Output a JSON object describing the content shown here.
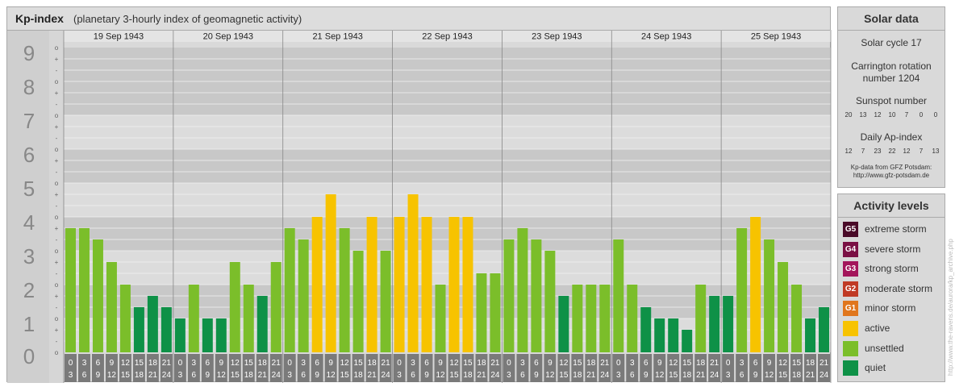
{
  "chart_data": {
    "type": "bar",
    "title": "Kp-index",
    "subtitle": "(planetary 3-hourly index of geomagnetic activity)",
    "ylim": [
      0,
      9
    ],
    "y_ticks": [
      "0",
      "1",
      "2",
      "3",
      "4",
      "5",
      "6",
      "7",
      "8",
      "9"
    ],
    "sub_ticks": [
      "+",
      "o",
      "-"
    ],
    "days": [
      "19 Sep 1943",
      "20 Sep 1943",
      "21 Sep 1943",
      "22 Sep 1943",
      "23 Sep 1943",
      "24 Sep 1943",
      "25 Sep 1943"
    ],
    "intervals": [
      [
        "0",
        "3"
      ],
      [
        "3",
        "6"
      ],
      [
        "6",
        "9"
      ],
      [
        "9",
        "12"
      ],
      [
        "12",
        "15"
      ],
      [
        "15",
        "18"
      ],
      [
        "18",
        "21"
      ],
      [
        "21",
        "24"
      ]
    ],
    "values": [
      [
        3.667,
        3.667,
        3.333,
        2.667,
        2.0,
        1.333,
        1.667,
        1.333
      ],
      [
        1.0,
        2.0,
        1.0,
        1.0,
        2.667,
        2.0,
        1.667,
        2.667
      ],
      [
        3.667,
        3.333,
        4.0,
        4.667,
        3.667,
        3.0,
        4.0,
        3.0
      ],
      [
        4.0,
        4.667,
        4.0,
        2.0,
        4.0,
        4.0,
        2.333,
        2.333
      ],
      [
        3.333,
        3.667,
        3.333,
        3.0,
        1.667,
        2.0,
        2.0,
        2.0
      ],
      [
        3.333,
        2.0,
        1.333,
        1.0,
        1.0,
        0.667,
        2.0,
        1.667
      ],
      [
        1.667,
        3.667,
        4.0,
        3.333,
        2.667,
        2.0,
        1.0,
        1.333
      ]
    ]
  },
  "colors": {
    "quiet": "#0e9147",
    "unsettled": "#7bbe2a",
    "active": "#f7c300",
    "g1": "#e0761d",
    "g2": "#c03a25",
    "g3": "#a3155a",
    "g4": "#7a1044",
    "g5": "#4a0a28"
  },
  "solar": {
    "title": "Solar data",
    "cycle": "Solar cycle 17",
    "carrington_1": "Carrington rotation",
    "carrington_2": "number 1204",
    "sunspot_label": "Sunspot number",
    "sunspot_values": [
      "20",
      "13",
      "12",
      "10",
      "7",
      "0",
      "0"
    ],
    "ap_label": "Daily Ap-index",
    "ap_values": [
      "12",
      "7",
      "23",
      "22",
      "12",
      "7",
      "13"
    ],
    "source_1": "Kp-data from GFZ Potsdam:",
    "source_2": "http://www.gfz-potsdam.de"
  },
  "activity": {
    "title": "Activity levels",
    "items": [
      {
        "badge": "G5",
        "label": "extreme storm",
        "color": "#4a0a28"
      },
      {
        "badge": "G4",
        "label": "severe storm",
        "color": "#7a1044"
      },
      {
        "badge": "G3",
        "label": "strong storm",
        "color": "#a3155a"
      },
      {
        "badge": "G2",
        "label": "moderate storm",
        "color": "#c03a25"
      },
      {
        "badge": "G1",
        "label": "minor storm",
        "color": "#e0761d"
      },
      {
        "badge": "",
        "label": "active",
        "color": "#f7c300"
      },
      {
        "badge": "",
        "label": "unsettled",
        "color": "#7bbe2a"
      },
      {
        "badge": "",
        "label": "quiet",
        "color": "#0e9147"
      }
    ]
  },
  "watermark": "http://www.the-ravens.de/aurora/kp_archive.php"
}
